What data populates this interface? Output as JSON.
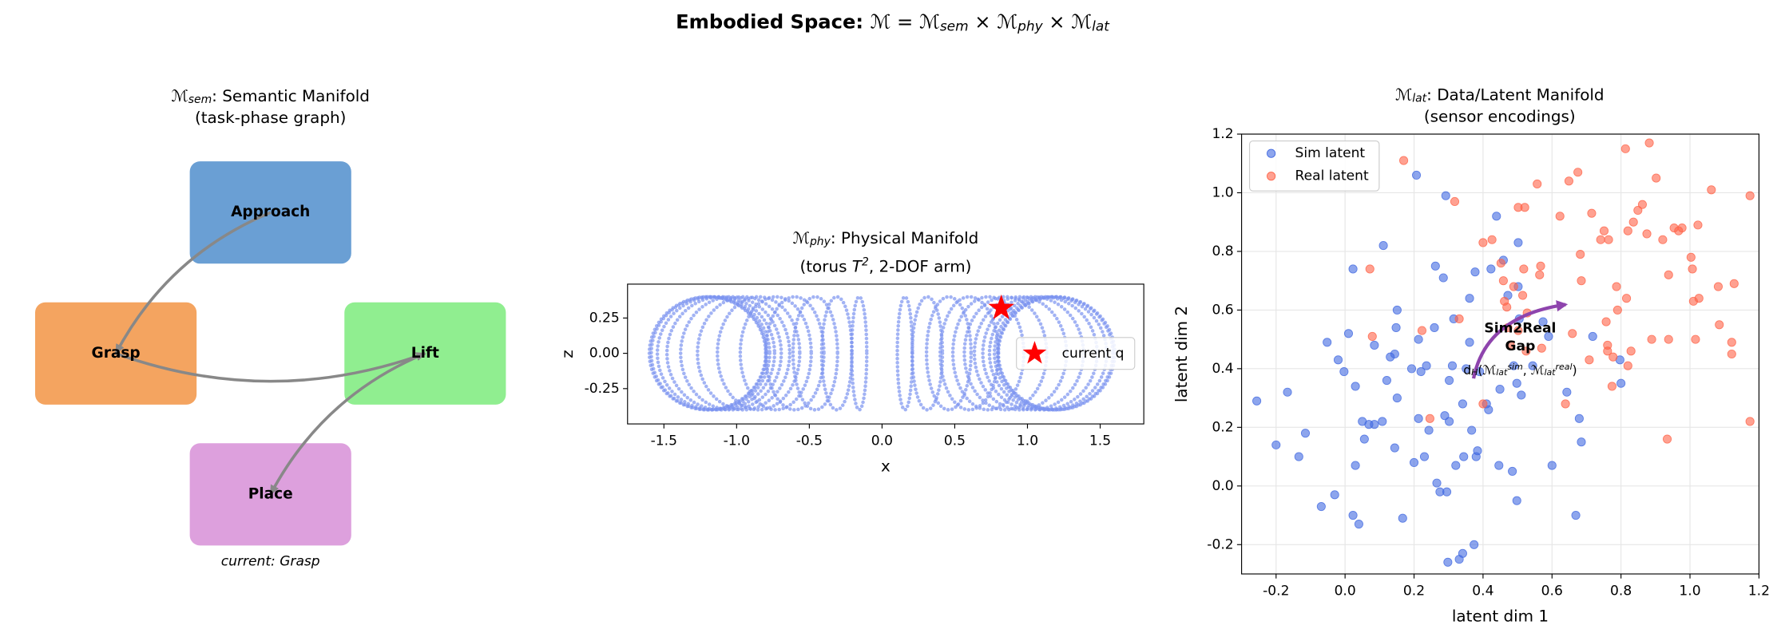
{
  "title": [
    [
      {
        "text": "Embodied Space: ",
        "style": "bold"
      },
      {
        "text": "ℳ = ℳ"
      },
      {
        "text": "sem",
        "style": "sub"
      },
      {
        "text": " × ℳ"
      },
      {
        "text": "phy",
        "style": "sub"
      },
      {
        "text": " × ℳ"
      },
      {
        "text": "lat",
        "style": "sub"
      }
    ]
  ],
  "chart_data": [
    {
      "type": "graph",
      "title": [
        [
          {
            "text": "ℳ"
          },
          {
            "text": "sem",
            "style": "sub"
          },
          {
            "text": ": Semantic Manifold"
          }
        ],
        [
          {
            "text": "(task-phase graph)"
          }
        ]
      ],
      "nodes": [
        {
          "label": "Approach",
          "color": "#6a9fd4"
        },
        {
          "label": "Grasp",
          "color": "#f4a460"
        },
        {
          "label": "Lift",
          "color": "#90ee90"
        },
        {
          "label": "Place",
          "color": "#dda0dd"
        }
      ],
      "edges": [
        [
          0,
          1
        ],
        [
          1,
          2
        ],
        [
          2,
          3
        ]
      ],
      "edge_color": "#888888",
      "current_label": "current: Grasp",
      "current_color": "#c0392b"
    },
    {
      "type": "rings",
      "title": [
        [
          {
            "text": "ℳ"
          },
          {
            "text": "phy",
            "style": "sub"
          },
          {
            "text": ": Physical Manifold"
          }
        ],
        [
          {
            "text": "(torus "
          },
          {
            "text": "T",
            "style": "italic"
          },
          {
            "text": "2",
            "style": "sup"
          },
          {
            "text": ", 2-DOF arm)"
          }
        ]
      ],
      "xlabel": "x",
      "ylabel": "z",
      "xlim": [
        -1.75,
        1.8
      ],
      "ylim": [
        -0.5,
        0.49
      ],
      "xticks": [
        -1.5,
        {
          "value": -1,
          "label": "-1.0"
        },
        -0.5,
        {
          "value": 0,
          "label": "0.0"
        },
        0.5,
        {
          "value": 1,
          "label": "1.0"
        },
        1.5
      ],
      "yticks": [
        -0.25,
        {
          "value": 0,
          "label": "0.00"
        },
        0.25
      ],
      "grid": false,
      "color": "#7b93f0",
      "ring_x": [
        -1.2,
        -1.19,
        -1.159,
        -1.109,
        -1.039,
        -0.952,
        -0.849,
        -0.731,
        -0.6,
        -0.459,
        -0.311,
        -0.157,
        0.157,
        0.311,
        0.459,
        0.6,
        0.731,
        0.849,
        0.952,
        1.039,
        1.109,
        1.159,
        1.19,
        1.2
      ],
      "ring_half_width": [
        0.4,
        0.397,
        0.386,
        0.37,
        0.346,
        0.317,
        0.283,
        0.244,
        0.2,
        0.153,
        0.104,
        0.052,
        0.052,
        0.104,
        0.153,
        0.2,
        0.244,
        0.283,
        0.317,
        0.346,
        0.37,
        0.386,
        0.397,
        0.4
      ],
      "ring_half_height": 0.4,
      "marker": {
        "name": "current q",
        "x": 0.82,
        "z": 0.32,
        "color": "#ff0000"
      },
      "legend": "lower right"
    },
    {
      "type": "scatter",
      "title": [
        [
          {
            "text": "ℳ"
          },
          {
            "text": "lat",
            "style": "sub"
          },
          {
            "text": ": Data/Latent Manifold"
          }
        ],
        [
          {
            "text": "(sensor encodings)"
          }
        ]
      ],
      "xlabel": "latent dim 1",
      "ylabel": "latent dim 2",
      "xlim": [
        -0.3,
        1.2
      ],
      "ylim": [
        -0.3,
        1.2
      ],
      "xticks": [
        -0.2,
        {
          "value": 0,
          "label": "0.0"
        },
        0.2,
        0.4,
        0.6,
        0.8,
        {
          "value": 1,
          "label": "1.0"
        },
        1.2
      ],
      "yticks": [
        -0.2,
        {
          "value": 0,
          "label": "0.0"
        },
        0.2,
        0.4,
        0.6,
        0.8,
        {
          "value": 1,
          "label": "1.0"
        },
        1.2
      ],
      "grid": true,
      "legend": "upper left",
      "series": [
        {
          "name": "Sim latent",
          "color": "#4169e1",
          "x": [
            -0.256,
            -0.2,
            -0.167,
            -0.134,
            -0.115,
            -0.069,
            -0.052,
            -0.03,
            -0.02,
            -0.003,
            0.01,
            0.023,
            0.023,
            0.03,
            0.04,
            0.03,
            0.05,
            0.056,
            0.069,
            0.085,
            0.085,
            0.108,
            0.111,
            0.121,
            0.131,
            0.144,
            0.151,
            0.148,
            0.144,
            0.151,
            0.167,
            0.193,
            0.2,
            0.213,
            0.207,
            0.213,
            0.22,
            0.23,
            0.236,
            0.243,
            0.259,
            0.262,
            0.266,
            0.275,
            0.285,
            0.289,
            0.292,
            0.295,
            0.298,
            0.302,
            0.302,
            0.311,
            0.315,
            0.321,
            0.331,
            0.341,
            0.341,
            0.344,
            0.351,
            0.361,
            0.361,
            0.367,
            0.374,
            0.38,
            0.384,
            0.377,
            0.39,
            0.41,
            0.416,
            0.423,
            0.439,
            0.446,
            0.449,
            0.459,
            0.472,
            0.485,
            0.489,
            0.498,
            0.498,
            0.502,
            0.502,
            0.505,
            0.511,
            0.544,
            0.574,
            0.59,
            0.6,
            0.643,
            0.669,
            0.679,
            0.685,
            0.718,
            0.797,
            0.8
          ],
          "values": [
            0.29,
            0.14,
            0.32,
            0.1,
            0.18,
            -0.07,
            0.49,
            -0.03,
            0.43,
            0.39,
            0.52,
            -0.1,
            0.74,
            0.34,
            -0.13,
            0.07,
            0.22,
            0.16,
            0.21,
            0.48,
            0.21,
            0.22,
            0.82,
            0.36,
            0.44,
            0.45,
            0.6,
            0.54,
            0.13,
            0.3,
            -0.11,
            0.4,
            0.08,
            0.23,
            1.06,
            0.5,
            0.39,
            0.1,
            0.41,
            0.19,
            0.54,
            0.75,
            0.01,
            -0.02,
            0.71,
            0.24,
            0.99,
            -0.02,
            -0.26,
            0.36,
            0.22,
            0.41,
            0.57,
            0.07,
            -0.25,
            -0.23,
            0.28,
            0.1,
            0.4,
            0.64,
            0.49,
            0.19,
            -0.2,
            0.1,
            0.12,
            0.73,
            0.39,
            0.28,
            0.26,
            0.74,
            0.92,
            0.07,
            0.33,
            0.77,
            0.65,
            0.05,
            0.41,
            0.35,
            -0.05,
            0.83,
            0.68,
            0.57,
            0.31,
            0.41,
            0.56,
            0.51,
            0.07,
            0.32,
            -0.1,
            0.23,
            0.15,
            0.51,
            0.43,
            0.35
          ]
        },
        {
          "name": "Real latent",
          "color": "#ff6347",
          "x": [
            0.079,
            0.072,
            0.17,
            0.223,
            0.246,
            0.318,
            0.331,
            0.4,
            0.426,
            0.4,
            0.452,
            0.459,
            0.462,
            0.469,
            0.472,
            0.479,
            0.489,
            0.502,
            0.502,
            0.515,
            0.518,
            0.521,
            0.525,
            0.528,
            0.557,
            0.567,
            0.564,
            0.57,
            0.623,
            0.639,
            0.649,
            0.659,
            0.675,
            0.682,
            0.685,
            0.715,
            0.708,
            0.741,
            0.751,
            0.757,
            0.764,
            0.761,
            0.777,
            0.774,
            0.79,
            0.787,
            0.813,
            0.82,
            0.816,
            0.82,
            0.829,
            0.836,
            0.849,
            0.862,
            0.875,
            0.882,
            0.902,
            0.889,
            0.921,
            0.938,
            0.938,
            0.954,
            0.967,
            0.977,
            1.007,
            1.003,
            1.01,
            1.016,
            1.026,
            1.023,
            1.062,
            1.082,
            1.085,
            1.121,
            1.121,
            1.128,
            1.174,
            1.174,
            0.934,
            0.761
          ],
          "values": [
            0.51,
            0.74,
            1.11,
            0.53,
            0.23,
            0.97,
            0.57,
            0.83,
            0.84,
            0.28,
            0.76,
            0.7,
            0.63,
            0.61,
            0.54,
            0.48,
            0.68,
            0.95,
            0.53,
            0.65,
            0.74,
            0.95,
            0.46,
            0.59,
            1.03,
            0.75,
            0.72,
            0.47,
            0.92,
            0.28,
            1.04,
            0.52,
            1.07,
            0.79,
            0.7,
            0.93,
            0.43,
            0.84,
            0.87,
            0.56,
            0.84,
            0.48,
            0.44,
            0.34,
            0.6,
            0.68,
            1.15,
            0.87,
            0.64,
            0.41,
            0.46,
            0.9,
            0.94,
            0.96,
            0.86,
            1.17,
            1.05,
            0.5,
            0.84,
            0.72,
            0.5,
            0.88,
            0.87,
            0.88,
            0.74,
            0.78,
            0.63,
            0.5,
            0.64,
            0.89,
            1.01,
            0.68,
            0.55,
            0.49,
            0.45,
            0.69,
            0.99,
            0.22,
            0.16,
            0.46
          ]
        }
      ],
      "annotation": {
        "lines": [
          "Sim2Real",
          "Gap"
        ],
        "color": "#8e44ad",
        "formula": [
          {
            "text": "d"
          },
          {
            "text": "H",
            "style": "sub"
          },
          {
            "text": "(ℳ"
          },
          {
            "text": "lat",
            "style": "sub"
          },
          {
            "text": "sim",
            "style": "sup"
          },
          {
            "text": ", ℳ"
          },
          {
            "text": "lat",
            "style": "sub"
          },
          {
            "text": "real",
            "style": "sup"
          },
          {
            "text": ")"
          }
        ]
      }
    }
  ]
}
